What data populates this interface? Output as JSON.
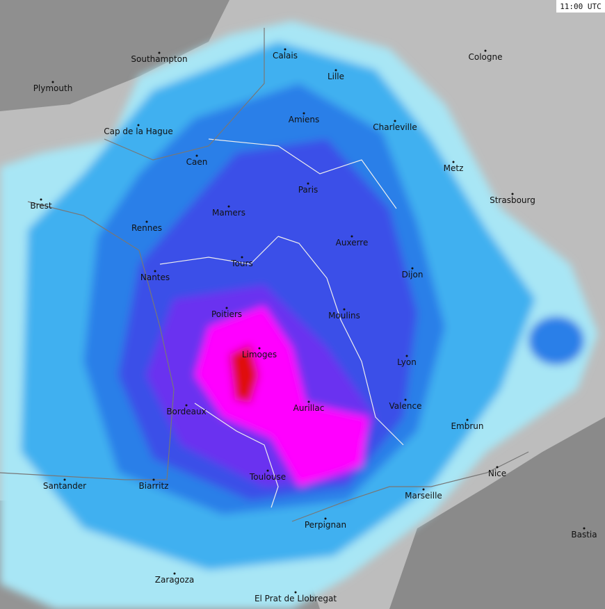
{
  "timestamp": "11:00 UTC",
  "cities": [
    "Southampton",
    "Plymouth",
    "Calais",
    "Lille",
    "Cologne",
    "Amiens",
    "Charleville",
    "Cap de la Hague",
    "Caen",
    "Metz",
    "Paris",
    "Brest",
    "Strasbourg",
    "Mamers",
    "Rennes",
    "Auxerre",
    "Tours",
    "Dijon",
    "Nantes",
    "Poitiers",
    "Moulins",
    "Limoges",
    "Lyon",
    "Bordeaux",
    "Aurillac",
    "Valence",
    "Embrun",
    "Nice",
    "Santander",
    "Biarritz",
    "Toulouse",
    "Marseille",
    "Perpignan",
    "Bastia",
    "Zaragoza",
    "El Prat de Llobregat"
  ]
}
